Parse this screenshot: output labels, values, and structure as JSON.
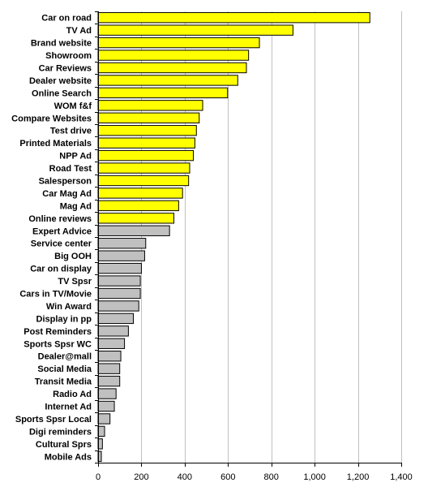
{
  "chart_data": {
    "type": "bar",
    "orientation": "horizontal",
    "title": "",
    "xlabel": "",
    "ylabel": "",
    "xlim": [
      0,
      1400
    ],
    "xticks": [
      0,
      200,
      400,
      600,
      800,
      1000,
      1200,
      1400
    ],
    "xtick_labels": [
      "0",
      "200",
      "400",
      "600",
      "800",
      "1,000",
      "1,200",
      "1,400"
    ],
    "grid": "vertical",
    "legend": "none",
    "colors": {
      "highlight": "#ffff00",
      "other": "#c0c0c0",
      "border": "#000000",
      "grid": "#c0c0c0"
    },
    "categories": [
      "Car on road",
      "TV Ad",
      "Brand website",
      "Showroom",
      "Car Reviews",
      "Dealer website",
      "Online Search",
      "WOM f&f",
      "Compare Websites",
      "Test drive",
      "Printed Materials",
      "NPP Ad",
      "Road Test",
      "Salesperson",
      "Car Mag Ad",
      "Mag Ad",
      "Online reviews",
      "Expert Advice",
      "Service center",
      "Big OOH",
      "Car on display",
      "TV Spsr",
      "Cars in TV/Movie",
      "Win Award",
      "Display in pp",
      "Post Reminders",
      "Sports Spsr WC",
      "Dealer@mall",
      "Social Media",
      "Transit Media",
      "Radio Ad",
      "Internet Ad",
      "Sports Spsr Local",
      "Digi reminders",
      "Cultural Sprs",
      "Mobile Ads"
    ],
    "values": [
      1255,
      900,
      745,
      695,
      685,
      645,
      598,
      483,
      467,
      454,
      447,
      440,
      423,
      418,
      390,
      372,
      350,
      330,
      220,
      215,
      200,
      195,
      195,
      188,
      163,
      140,
      122,
      105,
      100,
      100,
      83,
      75,
      55,
      30,
      20,
      15
    ],
    "highlighted": [
      true,
      true,
      true,
      true,
      true,
      true,
      true,
      true,
      true,
      true,
      true,
      true,
      true,
      true,
      true,
      true,
      true,
      false,
      false,
      false,
      false,
      false,
      false,
      false,
      false,
      false,
      false,
      false,
      false,
      false,
      false,
      false,
      false,
      false,
      false,
      false
    ]
  }
}
